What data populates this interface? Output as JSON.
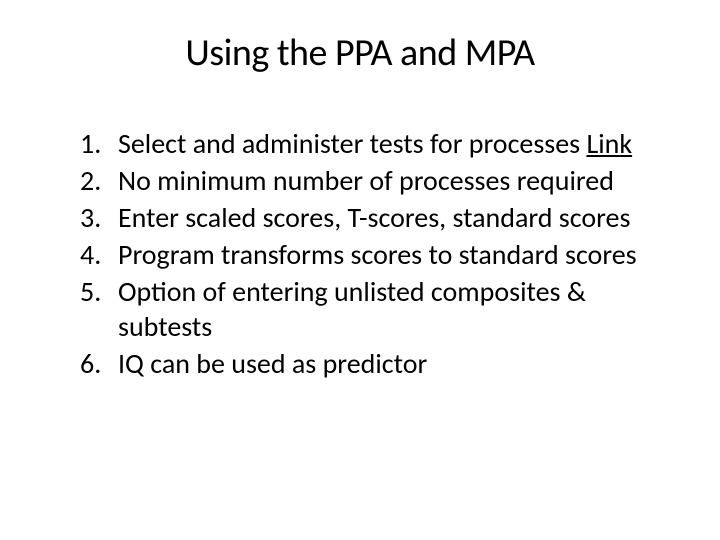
{
  "title": "Using the PPA and MPA",
  "items": [
    {
      "number": "1.",
      "text": "Select and administer tests for processes ",
      "link": "Link"
    },
    {
      "number": "2.",
      "text": "No minimum number of processes required"
    },
    {
      "number": "3.",
      "text": "Enter scaled scores, T-scores, standard scores"
    },
    {
      "number": "4.",
      "text": "Program transforms scores to standard scores"
    },
    {
      "number": "5.",
      "text": "Option of entering unlisted composites & subtests"
    },
    {
      "number": "6.",
      "text": "IQ can be used as predictor"
    }
  ],
  "colors": {
    "background": "#ffffff",
    "text": "#000000"
  },
  "typography": {
    "title_fontsize": 38,
    "body_fontsize": 28,
    "font_family": "Calibri"
  }
}
